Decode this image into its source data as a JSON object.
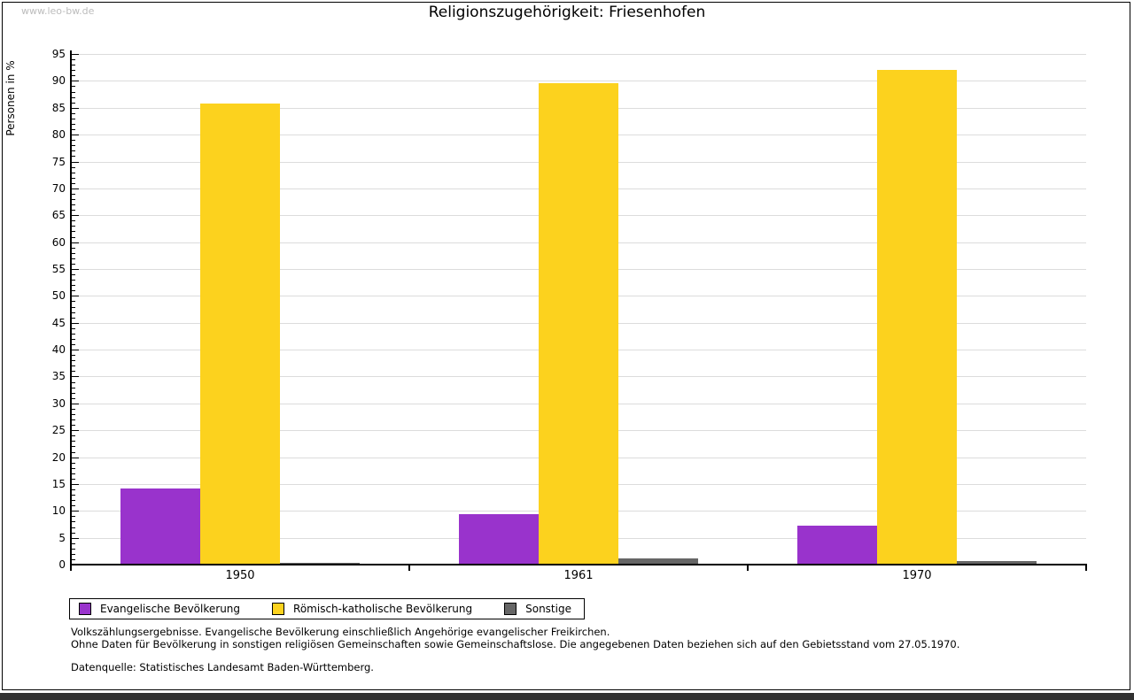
{
  "page": {
    "watermark": "www.leo-bw.de",
    "title": "Religionszugehörigkeit: Friesenhofen"
  },
  "chart_data": {
    "type": "bar",
    "title": "Religionszugehörigkeit: Friesenhofen",
    "xlabel": "",
    "ylabel": "Personen in %",
    "categories": [
      "1950",
      "1961",
      "1970"
    ],
    "series": [
      {
        "name": "Evangelische Bevölkerung",
        "color": "#9933cc",
        "values": [
          14.1,
          9.4,
          7.2
        ]
      },
      {
        "name": "Römisch-katholische Bevölkerung",
        "color": "#fcd21e",
        "values": [
          85.8,
          89.6,
          92.0
        ]
      },
      {
        "name": "Sonstige",
        "color": "#666666",
        "values": [
          0.3,
          1.2,
          0.7
        ]
      }
    ],
    "ylim": [
      0,
      95
    ],
    "ytick_step": 5,
    "yminortick_step": 1,
    "grid": true,
    "legend_position": "bottom-left"
  },
  "footnotes": {
    "line1": "Volkszählungsergebnisse. Evangelische Bevölkerung einschließlich Angehörige evangelischer Freikirchen.",
    "line2": "Ohne Daten für Bevölkerung in sonstigen religiösen Gemeinschaften sowie Gemeinschaftslose. Die angegebenen Daten beziehen sich auf den Gebietsstand vom 27.05.1970.",
    "source": "Datenquelle: Statistisches Landesamt Baden-Württemberg."
  },
  "colors": {
    "grid": "#dcdcdc",
    "axis": "#000000",
    "frame_border": "#000000",
    "bottom_strip": "#313131",
    "watermark": "#bcbcbc"
  }
}
